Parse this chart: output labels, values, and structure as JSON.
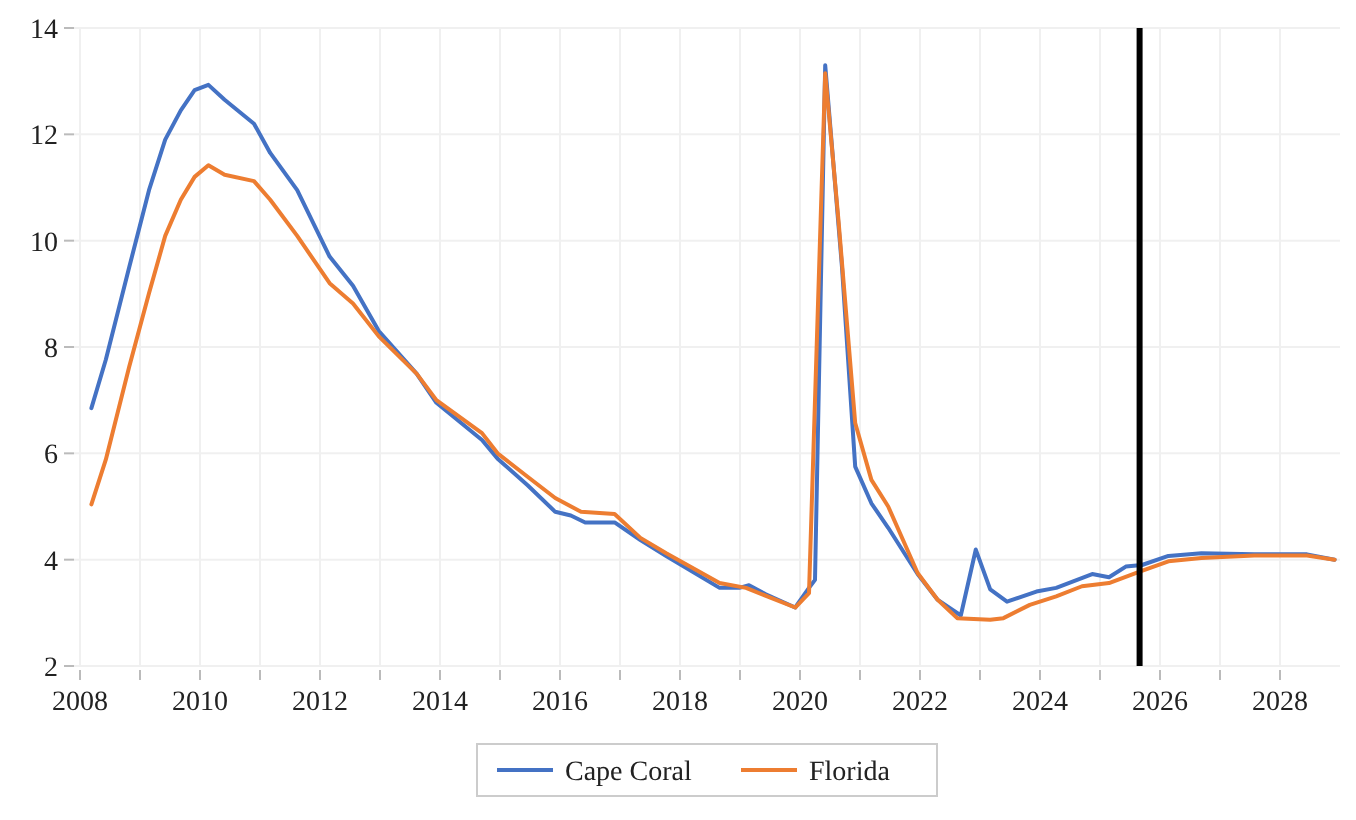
{
  "chart_data": {
    "type": "line",
    "xlim": [
      2007.9,
      2029.0
    ],
    "xticks": [
      2008,
      {
        "value": 2009,
        "label": null
      },
      2010,
      {
        "value": 2011,
        "label": null
      },
      2012,
      {
        "value": 2013,
        "label": null
      },
      2014,
      {
        "value": 2015,
        "label": null
      },
      2016,
      {
        "value": 2017,
        "label": null
      },
      2018,
      {
        "value": 2019,
        "label": null
      },
      2020,
      {
        "value": 2021,
        "label": null
      },
      2022,
      {
        "value": 2023,
        "label": null
      },
      2024,
      {
        "value": 2025,
        "label": null
      },
      2026,
      {
        "value": 2027,
        "label": null
      },
      2028
    ],
    "ylim": [
      2,
      14
    ],
    "yticks": [
      2,
      4,
      6,
      8,
      10,
      12,
      14
    ],
    "grid": true,
    "legend": "bottom",
    "ref_lines": [
      {
        "axis": "x",
        "value": 2025.66,
        "color": "#000000"
      }
    ],
    "series": [
      {
        "name": "Cape Coral",
        "color": "#4472c4",
        "x": [
          2008.19,
          2008.43,
          2008.82,
          2009.15,
          2009.42,
          2009.68,
          2009.91,
          2010.14,
          2010.41,
          2010.9,
          2011.17,
          2011.62,
          2012.16,
          2012.55,
          2012.98,
          2013.61,
          2013.94,
          2014.7,
          2014.96,
          2015.46,
          2015.92,
          2016.18,
          2016.42,
          2016.91,
          2017.34,
          2017.77,
          2018.66,
          2018.99,
          2019.15,
          2019.43,
          2019.92,
          2020.15,
          2020.25,
          2020.42,
          2020.7,
          2020.92,
          2021.19,
          2021.47,
          2021.96,
          2022.29,
          2022.68,
          2022.93,
          2023.17,
          2023.45,
          2023.94,
          2024.27,
          2024.87,
          2025.15,
          2025.43,
          2025.7,
          2026.14,
          2026.69,
          2027.57,
          2028.45,
          2028.91
        ],
        "values": [
          6.85,
          7.76,
          9.5,
          10.95,
          11.9,
          12.45,
          12.83,
          12.93,
          12.65,
          12.2,
          11.65,
          10.95,
          9.7,
          9.15,
          8.3,
          7.5,
          6.95,
          6.25,
          5.9,
          5.4,
          4.9,
          4.83,
          4.7,
          4.7,
          4.37,
          4.07,
          3.47,
          3.47,
          3.52,
          3.35,
          3.1,
          3.47,
          3.62,
          13.3,
          9.5,
          5.75,
          5.06,
          4.6,
          3.73,
          3.25,
          2.95,
          4.19,
          3.44,
          3.21,
          3.4,
          3.47,
          3.73,
          3.67,
          3.87,
          3.9,
          4.07,
          4.12,
          4.1,
          4.1,
          4.0
        ]
      },
      {
        "name": "Florida",
        "color": "#ed7d31",
        "x": [
          2008.19,
          2008.43,
          2008.82,
          2009.15,
          2009.42,
          2009.68,
          2009.91,
          2010.14,
          2010.41,
          2010.9,
          2011.17,
          2011.62,
          2012.16,
          2012.55,
          2012.98,
          2013.61,
          2013.94,
          2014.7,
          2014.96,
          2015.46,
          2015.92,
          2016.35,
          2016.91,
          2017.34,
          2017.77,
          2018.66,
          2019.1,
          2019.92,
          2020.15,
          2020.42,
          2020.64,
          2020.92,
          2021.19,
          2021.47,
          2021.96,
          2022.29,
          2022.62,
          2023.17,
          2023.39,
          2023.83,
          2024.27,
          2024.7,
          2025.15,
          2025.65,
          2026.14,
          2026.69,
          2027.57,
          2028.45,
          2028.91
        ],
        "values": [
          5.04,
          5.88,
          7.63,
          9.01,
          10.09,
          10.77,
          11.2,
          11.42,
          11.24,
          11.12,
          10.77,
          10.09,
          9.2,
          8.82,
          8.2,
          7.5,
          7.0,
          6.38,
          6.0,
          5.56,
          5.16,
          4.9,
          4.86,
          4.41,
          4.12,
          3.56,
          3.47,
          3.1,
          3.37,
          13.15,
          10.4,
          6.57,
          5.5,
          5.0,
          3.75,
          3.25,
          2.9,
          2.87,
          2.9,
          3.15,
          3.31,
          3.5,
          3.56,
          3.77,
          3.97,
          4.03,
          4.08,
          4.08,
          4.0
        ]
      }
    ]
  }
}
